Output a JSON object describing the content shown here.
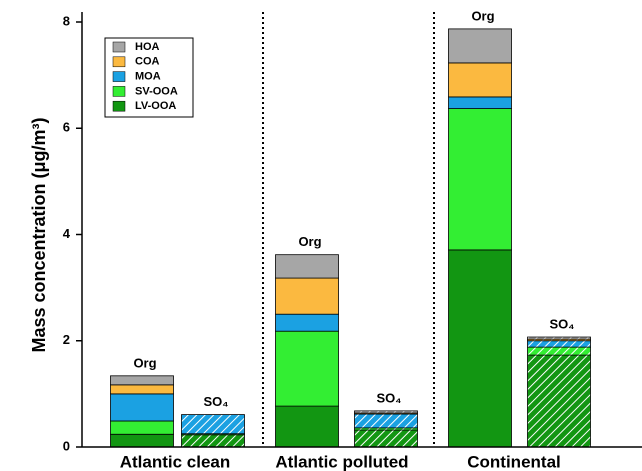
{
  "chart_data": {
    "type": "stacked_bar",
    "y_label": "Mass concentration (μg/m³)",
    "groups": [
      "Atlantic clean",
      "Atlantic polluted",
      "Continental"
    ],
    "categories": [
      "Org",
      "SO₄",
      "Org",
      "SO₄",
      "Org",
      "SO₄"
    ],
    "hatched": [
      false,
      true,
      false,
      true,
      false,
      true
    ],
    "series": [
      {
        "name": "LV-OOA",
        "color": "#129612",
        "values": [
          0.24,
          0.23,
          0.77,
          0.32,
          3.71,
          1.73
        ]
      },
      {
        "name": "SV-OOA",
        "color": "#33ee33",
        "values": [
          0.25,
          0.02,
          1.41,
          0.04,
          2.66,
          0.15
        ]
      },
      {
        "name": "MOA",
        "color": "#1ba1e2",
        "values": [
          0.51,
          0.36,
          0.32,
          0.26,
          0.22,
          0.12
        ]
      },
      {
        "name": "COA",
        "color": "#fbb940",
        "values": [
          0.17,
          0,
          0.68,
          0.02,
          0.64,
          0.03
        ]
      },
      {
        "name": "HOA",
        "color": "#a6a6a6",
        "values": [
          0.17,
          0,
          0.44,
          0.04,
          0.64,
          0.04
        ]
      }
    ],
    "ylim": [
      0,
      8
    ],
    "yticks": [
      0,
      2,
      4,
      6,
      8
    ]
  }
}
